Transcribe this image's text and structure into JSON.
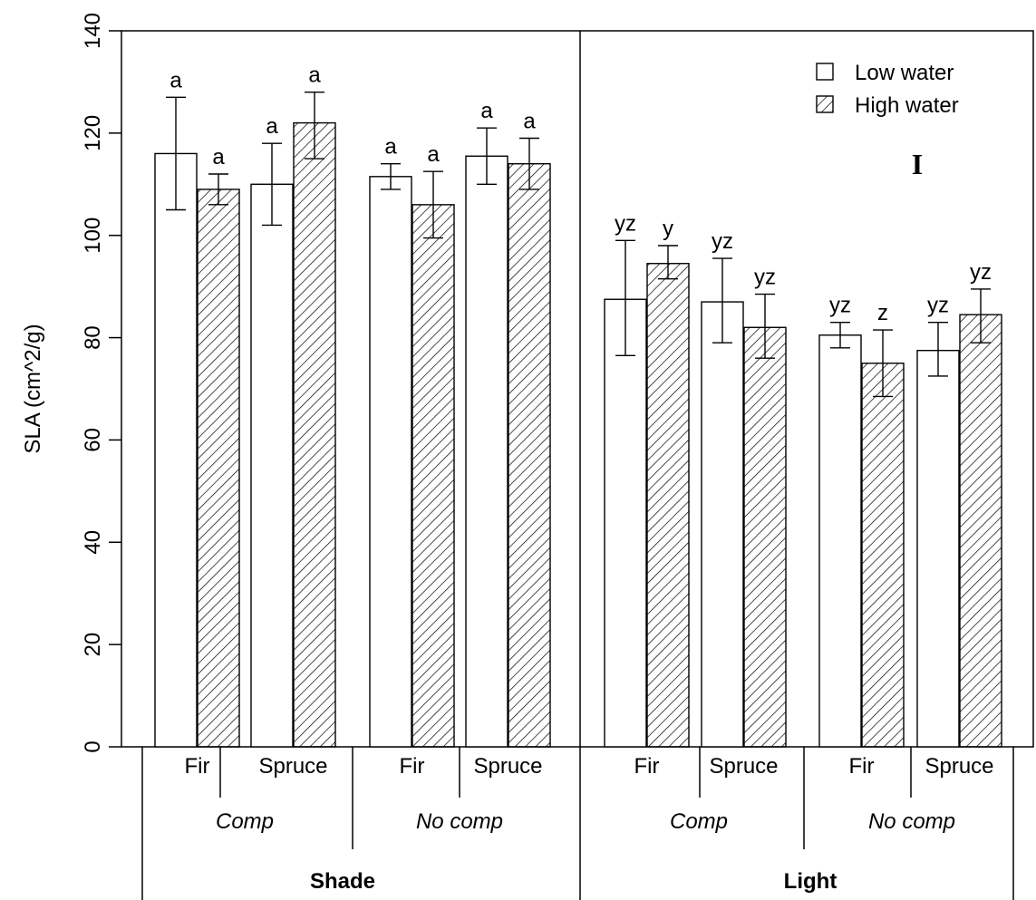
{
  "chart_data": {
    "type": "bar",
    "ylabel": "SLA (cm^2/g)",
    "ylim": [
      0,
      140
    ],
    "yticks": [
      0,
      20,
      40,
      60,
      80,
      100,
      120,
      140
    ],
    "panel_tag": "I",
    "legend": {
      "placement": "top-right",
      "entries": [
        {
          "name": "Low water",
          "fill": "open"
        },
        {
          "name": "High water",
          "fill": "hatched"
        }
      ]
    },
    "light_levels": [
      {
        "label": "Shade",
        "competition": [
          {
            "label": "Comp",
            "species": [
              {
                "label": "Fir",
                "bars": [
                  {
                    "series": "Low water",
                    "value": 116,
                    "err_low": 105,
                    "err_high": 127,
                    "sig": "a"
                  },
                  {
                    "series": "High water",
                    "value": 109,
                    "err_low": 106,
                    "err_high": 112,
                    "sig": "a"
                  }
                ]
              },
              {
                "label": "Spruce",
                "bars": [
                  {
                    "series": "Low water",
                    "value": 110,
                    "err_low": 102,
                    "err_high": 118,
                    "sig": "a"
                  },
                  {
                    "series": "High water",
                    "value": 122,
                    "err_low": 115,
                    "err_high": 128,
                    "sig": "a"
                  }
                ]
              }
            ]
          },
          {
            "label": "No comp",
            "species": [
              {
                "label": "Fir",
                "bars": [
                  {
                    "series": "Low water",
                    "value": 111.5,
                    "err_low": 109,
                    "err_high": 114,
                    "sig": "a"
                  },
                  {
                    "series": "High water",
                    "value": 106,
                    "err_low": 99.5,
                    "err_high": 112.5,
                    "sig": "a"
                  }
                ]
              },
              {
                "label": "Spruce",
                "bars": [
                  {
                    "series": "Low water",
                    "value": 115.5,
                    "err_low": 110,
                    "err_high": 121,
                    "sig": "a"
                  },
                  {
                    "series": "High water",
                    "value": 114,
                    "err_low": 109,
                    "err_high": 119,
                    "sig": "a"
                  }
                ]
              }
            ]
          }
        ]
      },
      {
        "label": "Light",
        "competition": [
          {
            "label": "Comp",
            "species": [
              {
                "label": "Fir",
                "bars": [
                  {
                    "series": "Low water",
                    "value": 87.5,
                    "err_low": 76.5,
                    "err_high": 99,
                    "sig": "yz"
                  },
                  {
                    "series": "High water",
                    "value": 94.5,
                    "err_low": 91.5,
                    "err_high": 98,
                    "sig": "y"
                  }
                ]
              },
              {
                "label": "Spruce",
                "bars": [
                  {
                    "series": "Low water",
                    "value": 87,
                    "err_low": 79,
                    "err_high": 95.5,
                    "sig": "yz"
                  },
                  {
                    "series": "High water",
                    "value": 82,
                    "err_low": 76,
                    "err_high": 88.5,
                    "sig": "yz"
                  }
                ]
              }
            ]
          },
          {
            "label": "No comp",
            "species": [
              {
                "label": "Fir",
                "bars": [
                  {
                    "series": "Low water",
                    "value": 80.5,
                    "err_low": 78,
                    "err_high": 83,
                    "sig": "yz"
                  },
                  {
                    "series": "High water",
                    "value": 75,
                    "err_low": 68.5,
                    "err_high": 81.5,
                    "sig": "z"
                  }
                ]
              },
              {
                "label": "Spruce",
                "bars": [
                  {
                    "series": "Low water",
                    "value": 77.5,
                    "err_low": 72.5,
                    "err_high": 83,
                    "sig": "yz"
                  },
                  {
                    "series": "High water",
                    "value": 84.5,
                    "err_low": 79,
                    "err_high": 89.5,
                    "sig": "yz"
                  }
                ]
              }
            ]
          }
        ]
      }
    ]
  }
}
